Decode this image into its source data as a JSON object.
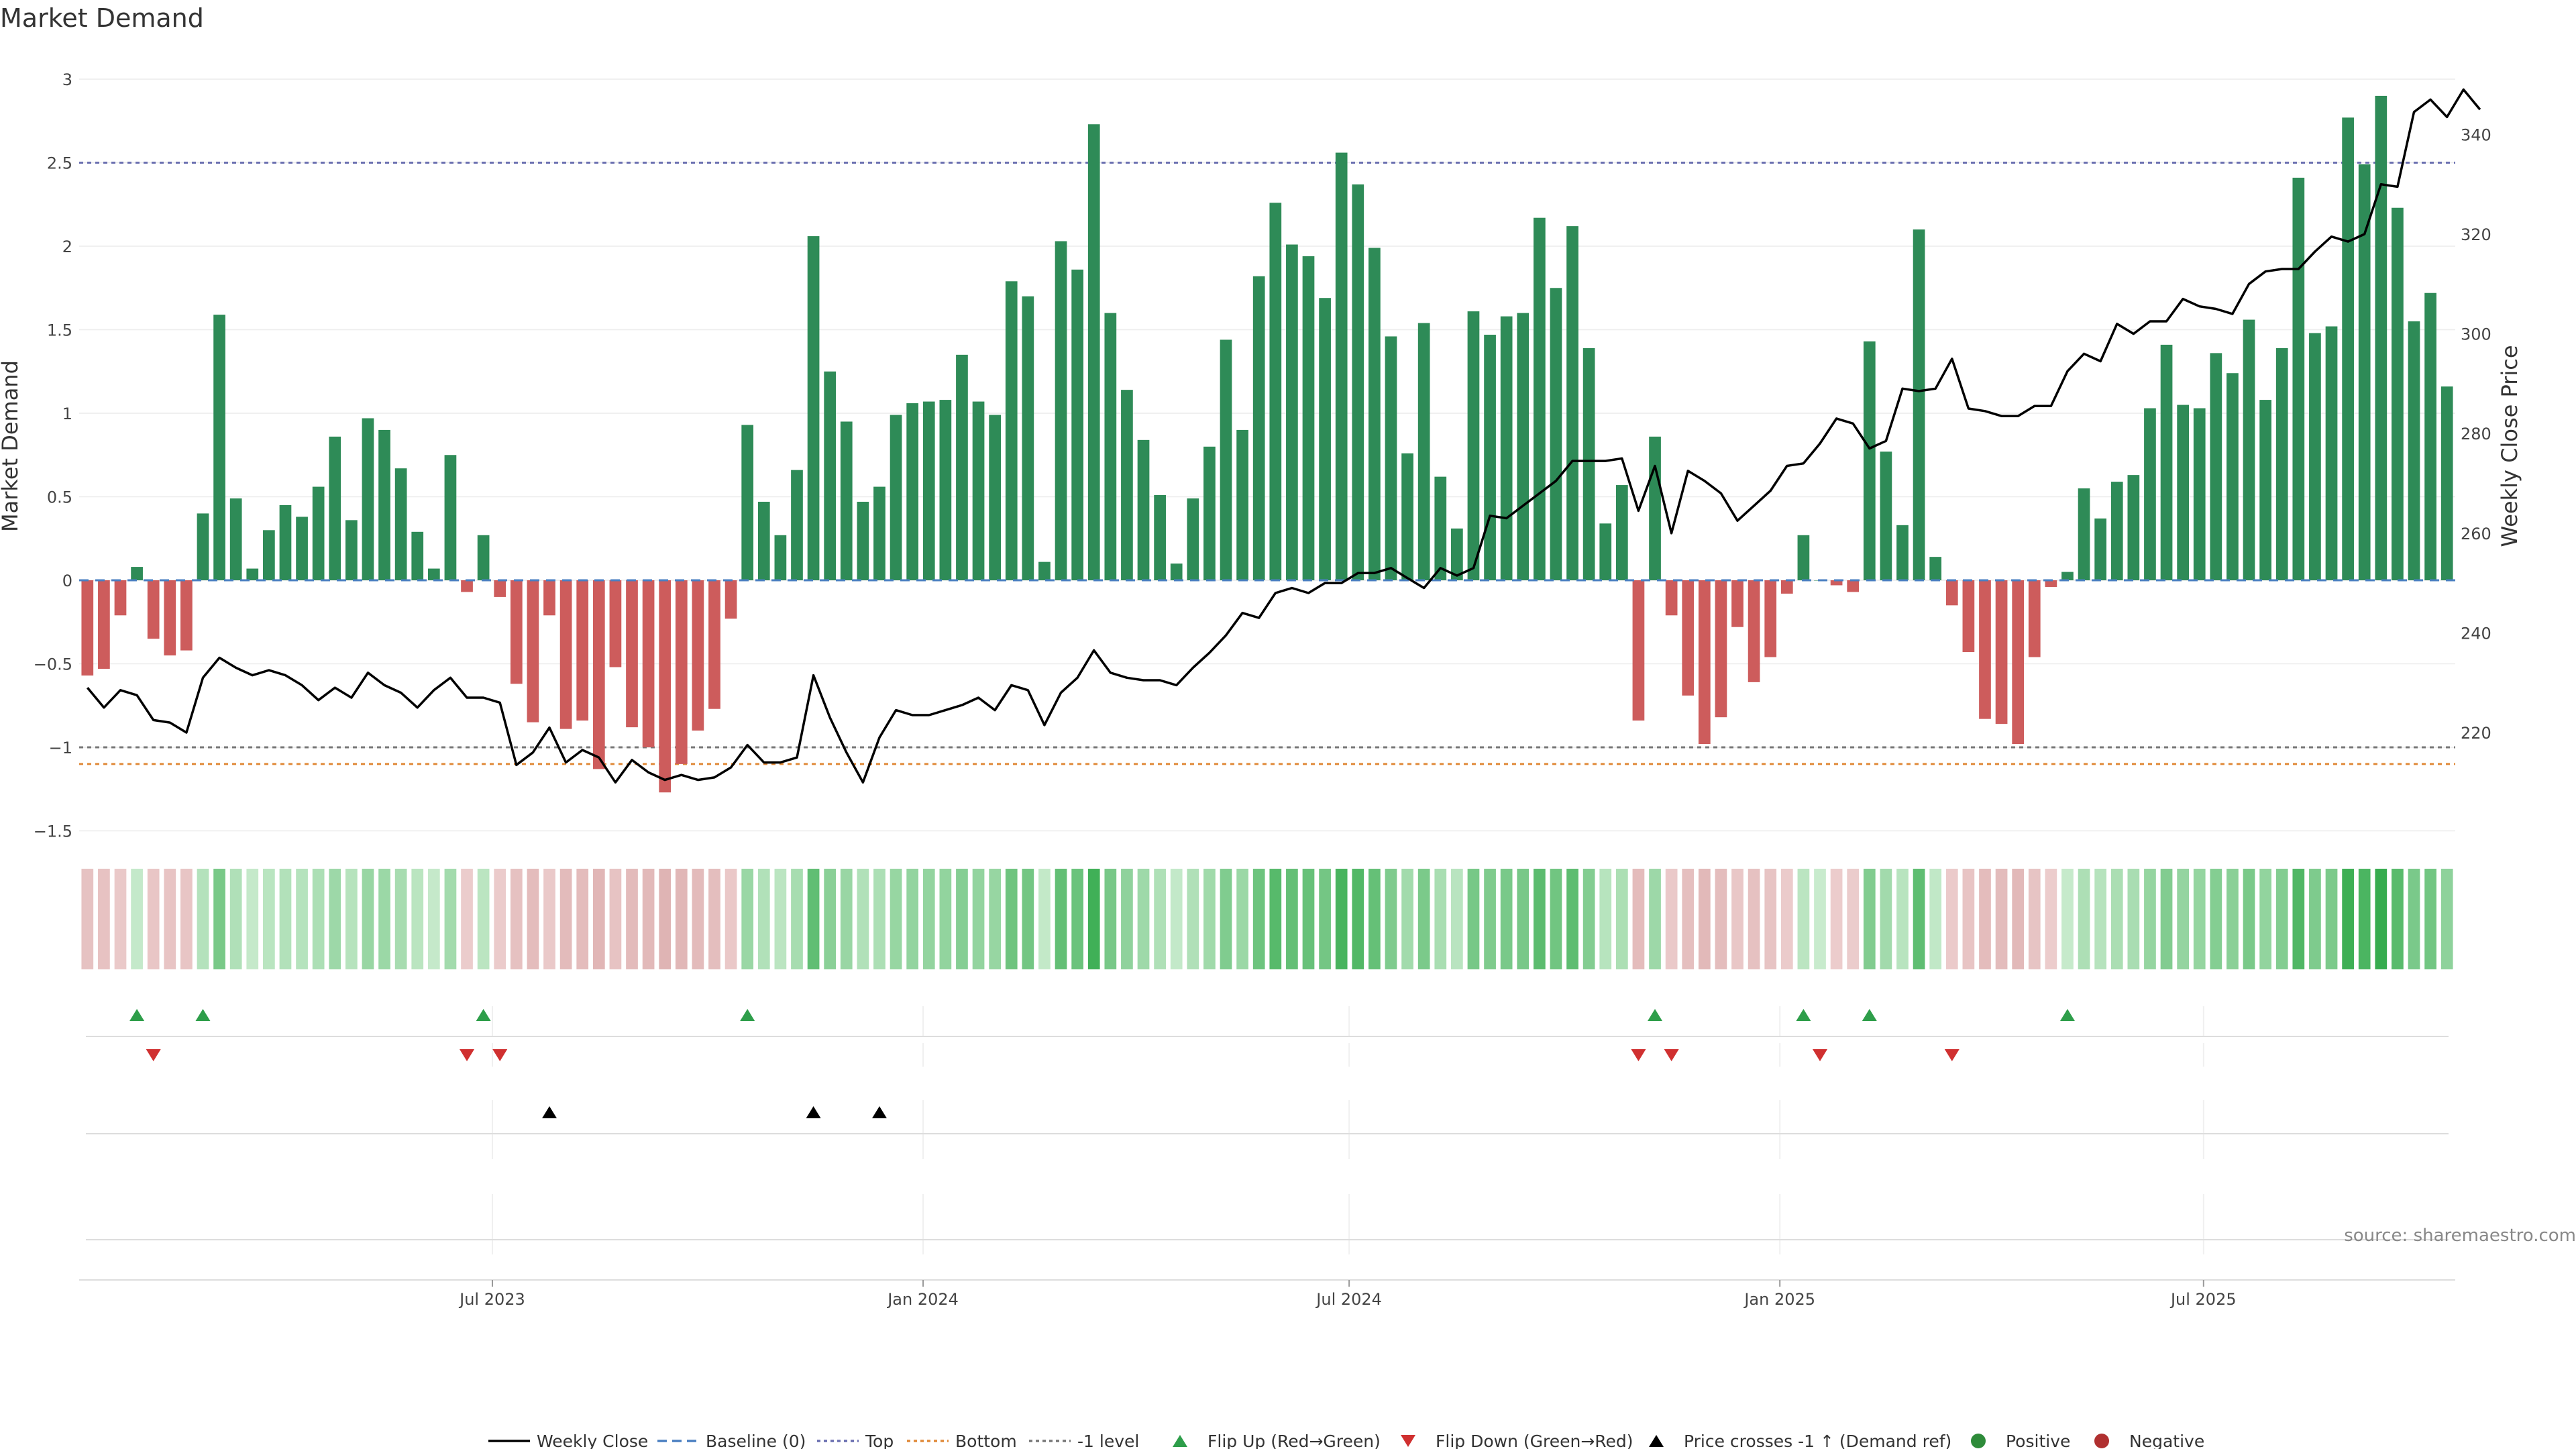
{
  "chart_data": {
    "type": "bar",
    "title": "Market Demand",
    "ylabel": "Market Demand",
    "y2label": "Weekly Close Price",
    "ylim": [
      -1.5,
      3
    ],
    "yticks": [
      -1.5,
      -1,
      -0.5,
      0,
      0.5,
      1,
      1.5,
      2,
      2.5,
      3
    ],
    "ytick_labels": [
      "−1.5",
      "−1",
      "−0.5",
      "0",
      "0.5",
      "1",
      "1.5",
      "2",
      "2.5",
      "3"
    ],
    "y2lim": [
      206,
      350
    ],
    "y2ticks": [
      220,
      240,
      260,
      280,
      300,
      320,
      340
    ],
    "x_start": "2023-01-09",
    "x_end": "2025-10-13",
    "xticks": [
      {
        "date": "2023-07-01",
        "label": "Jul 2023"
      },
      {
        "date": "2024-01-01",
        "label": "Jan 2024"
      },
      {
        "date": "2024-07-01",
        "label": "Jul 2024"
      },
      {
        "date": "2025-01-01",
        "label": "Jan 2025"
      },
      {
        "date": "2025-07-01",
        "label": "Jul 2025"
      }
    ],
    "top_level": 2.5,
    "bottom_level": -1.1,
    "minus_one_level": -1,
    "baseline": 0,
    "demand": [
      -0.57,
      -0.53,
      -0.21,
      0.08,
      -0.35,
      -0.45,
      -0.42,
      0.4,
      1.59,
      0.49,
      0.07,
      0.3,
      0.45,
      0.38,
      0.56,
      0.86,
      0.36,
      0.97,
      0.9,
      0.67,
      0.29,
      0.07,
      0.75,
      -0.07,
      0.27,
      -0.1,
      -0.62,
      -0.85,
      -0.21,
      -0.89,
      -0.84,
      -1.13,
      -0.52,
      -0.88,
      -1.0,
      -1.27,
      -1.1,
      -0.9,
      -0.77,
      -0.23,
      0.93,
      0.47,
      0.27,
      0.66,
      2.06,
      1.25,
      0.95,
      0.47,
      0.56,
      0.99,
      1.06,
      1.07,
      1.08,
      1.35,
      1.07,
      0.99,
      1.79,
      1.7,
      0.11,
      2.03,
      1.86,
      2.73,
      1.6,
      1.14,
      0.84,
      0.51,
      0.1,
      0.49,
      0.8,
      1.44,
      0.9,
      1.82,
      2.26,
      2.01,
      1.94,
      1.69,
      2.56,
      2.37,
      1.99,
      1.46,
      0.76,
      1.54,
      0.62,
      0.31,
      1.61,
      1.47,
      1.58,
      1.6,
      2.17,
      1.75,
      2.12,
      1.39,
      0.34,
      0.57,
      -0.84,
      0.86,
      -0.21,
      -0.69,
      -0.98,
      -0.82,
      -0.28,
      -0.61,
      -0.46,
      -0.08,
      0.27,
      0.0,
      -0.03,
      -0.07,
      1.43,
      0.77,
      0.33,
      2.1,
      0.14,
      -0.15,
      -0.43,
      -0.83,
      -0.86,
      -0.98,
      -0.46,
      -0.04,
      0.05,
      0.55,
      0.37,
      0.59,
      0.63,
      1.03,
      1.41,
      1.05,
      1.03,
      1.36,
      1.24,
      1.56,
      1.08,
      1.39,
      2.41,
      1.48,
      1.52,
      2.77,
      2.49,
      2.9,
      2.23,
      1.55,
      1.72,
      1.16
    ],
    "close": [
      229,
      225,
      228.5,
      227.5,
      222.5,
      222,
      220,
      231,
      235,
      233,
      231.5,
      232.5,
      231.5,
      229.5,
      226.5,
      229,
      227,
      232,
      229.5,
      228,
      225,
      228.5,
      231,
      227,
      227,
      226,
      213.5,
      216,
      221,
      214,
      216.5,
      215,
      210,
      214.5,
      212,
      210.5,
      211.5,
      210.5,
      211,
      213,
      217.5,
      214,
      214,
      215,
      231.5,
      223,
      216,
      210,
      219,
      224.5,
      223.5,
      223.5,
      224.5,
      225.5,
      227,
      224.5,
      229.5,
      228.5,
      221.5,
      228,
      231,
      236.5,
      232,
      231,
      230.5,
      230.5,
      229.5,
      233,
      236,
      239.5,
      244,
      243,
      248,
      249,
      248,
      250,
      250,
      252,
      252,
      253,
      251,
      249,
      253,
      251.5,
      253,
      263.5,
      263,
      265.5,
      268,
      270.5,
      274.5,
      274.5,
      274.5,
      275,
      264.5,
      273.5,
      260,
      272.5,
      270.5,
      268,
      262.5,
      265.5,
      268.5,
      273.5,
      274,
      278,
      283,
      282,
      277,
      278.5,
      289,
      288.5,
      289,
      295,
      285,
      284.5,
      283.5,
      283.5,
      285.5,
      285.5,
      292.5,
      296,
      294.5,
      302,
      300,
      302.5,
      302.5,
      307,
      305.5,
      305,
      304,
      310,
      312.5,
      313,
      313,
      316.5,
      319.5,
      318.5,
      320,
      330,
      329.5,
      344.5,
      347,
      343.5,
      349,
      345
    ]
  },
  "heatmap_strip": {
    "levels": [
      -0.57,
      -0.53,
      -0.21,
      0.08,
      -0.35,
      -0.45,
      -0.42,
      0.4,
      1.59,
      0.49,
      0.07,
      0.3,
      0.45,
      0.38,
      0.56,
      0.86,
      0.36,
      0.97,
      0.9,
      0.67,
      0.29,
      0.07,
      0.75,
      -0.07,
      0.27,
      -0.1,
      -0.62,
      -0.85,
      -0.21,
      -0.89,
      -0.84,
      -1.13,
      -0.52,
      -0.88,
      -1.0,
      -1.27,
      -1.1,
      -0.9,
      -0.77,
      -0.23,
      0.93,
      0.47,
      0.27,
      0.66,
      2.06,
      1.25,
      0.95,
      0.47,
      0.56,
      0.99,
      1.06,
      1.07,
      1.08,
      1.35,
      1.07,
      0.99,
      1.79,
      1.7,
      0.11,
      2.03,
      1.86,
      2.73,
      1.6,
      1.14,
      0.84,
      0.51,
      0.1,
      0.49,
      0.8,
      1.44,
      0.9,
      1.82,
      2.26,
      2.01,
      1.94,
      1.69,
      2.56,
      2.37,
      1.99,
      1.46,
      0.76,
      1.54,
      0.62,
      0.31,
      1.61,
      1.47,
      1.58,
      1.6,
      2.17,
      1.75,
      2.12,
      1.39,
      0.34,
      0.57,
      -0.84,
      0.86,
      -0.21,
      -0.69,
      -0.98,
      -0.82,
      -0.28,
      -0.61,
      -0.46,
      -0.08,
      0.27,
      0.0,
      -0.03,
      -0.07,
      1.43,
      0.77,
      0.33,
      2.1,
      0.14,
      -0.15,
      -0.43,
      -0.83,
      -0.86,
      -0.98,
      -0.46,
      -0.04,
      0.05,
      0.55,
      0.37,
      0.59,
      0.63,
      1.03,
      1.41,
      1.05,
      1.03,
      1.36,
      1.24,
      1.56,
      1.08,
      1.39,
      2.41,
      1.48,
      1.52,
      2.77,
      2.49,
      2.9,
      2.23,
      1.55,
      1.72,
      1.16
    ]
  },
  "markers": {
    "flip_up_weeks": [
      3,
      7,
      24,
      40,
      95,
      104,
      108,
      120
    ],
    "flip_down_weeks": [
      4,
      23,
      25,
      94,
      96,
      105,
      113
    ],
    "price_cross_weeks": [
      28,
      44,
      48
    ]
  },
  "legend": [
    {
      "key": "weekly_close",
      "label": "Weekly Close",
      "symbol": "line-solid",
      "color": "#000000"
    },
    {
      "key": "baseline",
      "label": "Baseline (0)",
      "symbol": "line-dashed",
      "color": "#4a7fc1"
    },
    {
      "key": "top",
      "label": "Top",
      "symbol": "line-dotted",
      "color": "#6a6fb0"
    },
    {
      "key": "bottom",
      "label": "Bottom",
      "symbol": "line-dotted",
      "color": "#e08a3a"
    },
    {
      "key": "minus_one",
      "label": "-1 level",
      "symbol": "line-dotted",
      "color": "#777777"
    },
    {
      "key": "flip_up",
      "label": "Flip Up (Red→Green)",
      "symbol": "triangle-up",
      "color": "#2e9e4a"
    },
    {
      "key": "flip_down",
      "label": "Flip Down (Green→Red)",
      "symbol": "triangle-down",
      "color": "#d03030"
    },
    {
      "key": "price_cross",
      "label": "Price crosses -1 ↑ (Demand ref)",
      "symbol": "triangle-up",
      "color": "#000000"
    },
    {
      "key": "positive",
      "label": "Positive",
      "symbol": "circle",
      "color": "#2e8b3a"
    },
    {
      "key": "negative",
      "label": "Negative",
      "symbol": "circle",
      "color": "#b03030"
    }
  ],
  "source": "source: sharemaestro.com",
  "colors": {
    "positive_bar": "#2e8b57",
    "negative_bar": "#cd5c5c",
    "close_line": "#000000",
    "baseline": "#4a7fc1",
    "top": "#6a6fb0",
    "bottom": "#e08a3a",
    "minus_one": "#777777",
    "flip_up": "#2e9e4a",
    "flip_down": "#d03030",
    "price_cross": "#000000",
    "grid": "#ececec"
  }
}
